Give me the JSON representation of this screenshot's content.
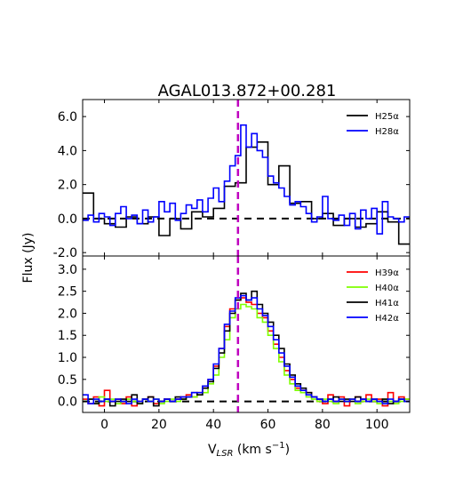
{
  "figure": {
    "title": "AGAL013.872+00.281",
    "ylabel": "Flux (Jy)",
    "xlabel_main": "V",
    "xlabel_sub": "LSR",
    "xlabel_unit": " (km s",
    "xlabel_sup": "−1",
    "xlabel_close": ")"
  },
  "chart_data": [
    {
      "type": "line",
      "step": true,
      "panel": "top",
      "xlim": [
        -8,
        112
      ],
      "ylim": [
        -2.2,
        7.0
      ],
      "xticks": [
        0,
        20,
        40,
        60,
        80,
        100
      ],
      "yticks": [
        -2.0,
        0.0,
        2.0,
        4.0,
        6.0
      ],
      "ytick_labels": [
        "-2.0",
        "0.0",
        "2.0",
        "4.0",
        "6.0"
      ],
      "legend_position": "top-right",
      "reference_line": {
        "x": 49,
        "color": "#bf00bf",
        "style": "dashed"
      },
      "baseline": {
        "y": 0,
        "color": "#000000",
        "style": "dashed"
      },
      "series": [
        {
          "name": "H25α",
          "color": "#000000",
          "x": [
            -8,
            -4,
            0,
            4,
            8,
            12,
            16,
            20,
            24,
            28,
            32,
            36,
            40,
            44,
            48,
            52,
            56,
            60,
            64,
            68,
            72,
            76,
            80,
            84,
            88,
            92,
            96,
            100,
            104,
            108
          ],
          "y": [
            1.5,
            0.0,
            -0.3,
            -0.5,
            0.1,
            -0.3,
            0.1,
            -1.0,
            0.0,
            -0.6,
            0.4,
            0.1,
            0.6,
            1.9,
            2.1,
            4.2,
            4.5,
            2.0,
            3.1,
            0.9,
            1.0,
            0.0,
            0.3,
            -0.4,
            0.0,
            -0.5,
            -0.3,
            0.4,
            -0.2,
            -1.5
          ]
        },
        {
          "name": "H28α",
          "color": "#0000ff",
          "x": [
            -8,
            -6,
            -4,
            -2,
            0,
            2,
            4,
            6,
            8,
            10,
            12,
            14,
            16,
            18,
            20,
            22,
            24,
            26,
            28,
            30,
            32,
            34,
            36,
            38,
            40,
            42,
            44,
            46,
            48,
            50,
            52,
            54,
            56,
            58,
            60,
            62,
            64,
            66,
            68,
            70,
            72,
            74,
            76,
            78,
            80,
            82,
            84,
            86,
            88,
            90,
            92,
            94,
            96,
            98,
            100,
            102,
            104,
            106,
            108,
            110
          ],
          "y": [
            -0.1,
            0.2,
            -0.2,
            0.3,
            0.1,
            -0.4,
            0.3,
            0.7,
            0.0,
            0.2,
            -0.3,
            0.5,
            -0.2,
            0.1,
            1.0,
            0.4,
            0.9,
            -0.1,
            0.3,
            0.8,
            0.6,
            1.1,
            0.4,
            1.2,
            1.8,
            1.0,
            2.2,
            3.1,
            3.7,
            5.5,
            4.2,
            5.0,
            4.0,
            3.6,
            2.5,
            2.1,
            1.8,
            1.3,
            0.8,
            1.0,
            0.7,
            0.3,
            -0.2,
            0.1,
            1.3,
            0.0,
            -0.1,
            0.2,
            -0.4,
            0.3,
            -0.6,
            0.5,
            0.0,
            0.6,
            -0.9,
            1.0,
            0.1,
            0.0,
            -0.2,
            0.1
          ]
        }
      ]
    },
    {
      "type": "line",
      "step": true,
      "panel": "bottom",
      "xlim": [
        -8,
        112
      ],
      "ylim": [
        -0.25,
        3.3
      ],
      "xticks": [
        0,
        20,
        40,
        60,
        80,
        100
      ],
      "xtick_labels": [
        "0",
        "20",
        "40",
        "60",
        "80",
        "100"
      ],
      "yticks": [
        0.0,
        0.5,
        1.0,
        1.5,
        2.0,
        2.5,
        3.0
      ],
      "ytick_labels": [
        "0.0",
        "0.5",
        "1.0",
        "1.5",
        "2.0",
        "2.5",
        "3.0"
      ],
      "legend_position": "top-right",
      "reference_line": {
        "x": 49,
        "color": "#bf00bf",
        "style": "dashed"
      },
      "baseline": {
        "y": 0,
        "color": "#000000",
        "style": "dashed"
      },
      "series": [
        {
          "name": "H39α",
          "color": "#ff0000",
          "x": [
            -8,
            -6,
            -4,
            -2,
            0,
            2,
            4,
            6,
            8,
            10,
            12,
            14,
            16,
            18,
            20,
            22,
            24,
            26,
            28,
            30,
            32,
            34,
            36,
            38,
            40,
            42,
            44,
            46,
            48,
            50,
            52,
            54,
            56,
            58,
            60,
            62,
            64,
            66,
            68,
            70,
            72,
            74,
            76,
            78,
            80,
            82,
            84,
            86,
            88,
            90,
            92,
            94,
            96,
            98,
            100,
            102,
            104,
            106,
            108,
            110
          ],
          "y": [
            0.05,
            -0.05,
            0.1,
            -0.1,
            0.25,
            0.0,
            0.05,
            -0.05,
            0.1,
            -0.1,
            0.0,
            0.05,
            0.1,
            -0.05,
            0.0,
            0.05,
            0.0,
            0.05,
            0.1,
            0.15,
            0.1,
            0.2,
            0.35,
            0.5,
            0.8,
            1.2,
            1.7,
            2.1,
            2.3,
            2.35,
            2.25,
            2.2,
            2.0,
            1.9,
            1.6,
            1.3,
            1.0,
            0.7,
            0.5,
            0.3,
            0.25,
            0.2,
            0.1,
            0.0,
            -0.05,
            0.15,
            0.0,
            0.1,
            -0.1,
            0.05,
            0.1,
            0.0,
            0.15,
            0.0,
            0.05,
            -0.1,
            0.2,
            0.0,
            0.1,
            0.05
          ]
        },
        {
          "name": "H40α",
          "color": "#7fff00",
          "x": [
            -8,
            -6,
            -4,
            -2,
            0,
            2,
            4,
            6,
            8,
            10,
            12,
            14,
            16,
            18,
            20,
            22,
            24,
            26,
            28,
            30,
            32,
            34,
            36,
            38,
            40,
            42,
            44,
            46,
            48,
            50,
            52,
            54,
            56,
            58,
            60,
            62,
            64,
            66,
            68,
            70,
            72,
            74,
            76,
            78,
            80,
            82,
            84,
            86,
            88,
            90,
            92,
            94,
            96,
            98,
            100,
            102,
            104,
            106,
            108,
            110
          ],
          "y": [
            0.0,
            0.05,
            -0.05,
            0.1,
            0.0,
            0.05,
            -0.05,
            0.0,
            0.05,
            0.0,
            -0.05,
            0.05,
            0.0,
            0.05,
            -0.05,
            0.0,
            0.05,
            0.0,
            0.05,
            0.1,
            0.1,
            0.15,
            0.2,
            0.4,
            0.6,
            1.0,
            1.4,
            1.9,
            2.1,
            2.2,
            2.15,
            2.1,
            1.9,
            1.8,
            1.5,
            1.2,
            0.9,
            0.6,
            0.4,
            0.25,
            0.2,
            0.1,
            0.05,
            0.0,
            0.05,
            0.0,
            -0.05,
            0.05,
            0.0,
            0.05,
            -0.05,
            0.0,
            0.05,
            0.0,
            -0.05,
            0.05,
            0.0,
            -0.05,
            0.0,
            0.05
          ]
        },
        {
          "name": "H41α",
          "color": "#000000",
          "x": [
            -8,
            -6,
            -4,
            -2,
            0,
            2,
            4,
            6,
            8,
            10,
            12,
            14,
            16,
            18,
            20,
            22,
            24,
            26,
            28,
            30,
            32,
            34,
            36,
            38,
            40,
            42,
            44,
            46,
            48,
            50,
            52,
            54,
            56,
            58,
            60,
            62,
            64,
            66,
            68,
            70,
            72,
            74,
            76,
            78,
            80,
            82,
            84,
            86,
            88,
            90,
            92,
            94,
            96,
            98,
            100,
            102,
            104,
            106,
            108,
            110
          ],
          "y": [
            0.0,
            0.05,
            -0.05,
            0.0,
            0.05,
            -0.1,
            0.0,
            0.05,
            0.0,
            0.15,
            -0.05,
            0.05,
            0.1,
            -0.1,
            0.0,
            0.05,
            0.0,
            0.1,
            0.05,
            0.1,
            0.2,
            0.15,
            0.3,
            0.45,
            0.75,
            1.1,
            1.6,
            2.0,
            2.3,
            2.45,
            2.3,
            2.5,
            2.2,
            2.0,
            1.8,
            1.5,
            1.2,
            0.85,
            0.6,
            0.4,
            0.3,
            0.2,
            0.1,
            0.05,
            0.0,
            0.05,
            0.1,
            0.0,
            0.05,
            0.0,
            0.1,
            0.05,
            0.0,
            0.05,
            0.0,
            0.05,
            -0.05,
            0.0,
            0.05,
            0.0
          ]
        },
        {
          "name": "H42α",
          "color": "#0000ff",
          "x": [
            -8,
            -6,
            -4,
            -2,
            0,
            2,
            4,
            6,
            8,
            10,
            12,
            14,
            16,
            18,
            20,
            22,
            24,
            26,
            28,
            30,
            32,
            34,
            36,
            38,
            40,
            42,
            44,
            46,
            48,
            50,
            52,
            54,
            56,
            58,
            60,
            62,
            64,
            66,
            68,
            70,
            72,
            74,
            76,
            78,
            80,
            82,
            84,
            86,
            88,
            90,
            92,
            94,
            96,
            98,
            100,
            102,
            104,
            106,
            108,
            110
          ],
          "y": [
            0.15,
            -0.05,
            0.05,
            0.0,
            0.05,
            0.0,
            0.05,
            0.0,
            -0.05,
            0.05,
            0.0,
            0.05,
            0.0,
            0.05,
            0.0,
            0.05,
            0.0,
            0.05,
            0.1,
            0.1,
            0.2,
            0.2,
            0.35,
            0.5,
            0.85,
            1.2,
            1.75,
            2.05,
            2.35,
            2.4,
            2.3,
            2.35,
            2.1,
            1.95,
            1.7,
            1.4,
            1.1,
            0.8,
            0.55,
            0.35,
            0.25,
            0.15,
            0.1,
            0.05,
            0.0,
            0.05,
            0.0,
            0.05,
            0.0,
            0.05,
            0.0,
            0.05,
            0.0,
            0.05,
            0.0,
            -0.05,
            0.05,
            0.0,
            0.05,
            0.0
          ]
        }
      ]
    }
  ]
}
